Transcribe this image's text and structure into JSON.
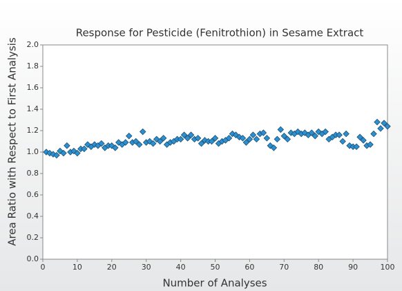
{
  "chart_data": {
    "type": "scatter",
    "title": "Response for Pesticide (Fenitrothion) in Sesame Extract",
    "x_label": "Number of Analyses",
    "y_label": "Area Ratio with Respect to First Analysis",
    "x": [
      1,
      2,
      3,
      4,
      5,
      6,
      7,
      8,
      9,
      10,
      11,
      12,
      13,
      14,
      15,
      16,
      17,
      18,
      19,
      20,
      21,
      22,
      23,
      24,
      25,
      26,
      27,
      28,
      29,
      30,
      31,
      32,
      33,
      34,
      35,
      36,
      37,
      38,
      39,
      40,
      41,
      42,
      43,
      44,
      45,
      46,
      47,
      48,
      49,
      50,
      51,
      52,
      53,
      54,
      55,
      56,
      57,
      58,
      59,
      60,
      61,
      62,
      63,
      64,
      65,
      66,
      67,
      68,
      69,
      70,
      71,
      72,
      73,
      74,
      75,
      76,
      77,
      78,
      79,
      80,
      81,
      82,
      83,
      84,
      85,
      86,
      87,
      88,
      89,
      90,
      91,
      92,
      93,
      94,
      95,
      96,
      97,
      98,
      99,
      100
    ],
    "values": [
      1.0,
      0.99,
      0.98,
      0.97,
      1.01,
      0.99,
      1.06,
      1.0,
      1.01,
      0.99,
      1.03,
      1.03,
      1.07,
      1.05,
      1.07,
      1.06,
      1.08,
      1.04,
      1.06,
      1.06,
      1.04,
      1.09,
      1.07,
      1.09,
      1.15,
      1.09,
      1.1,
      1.07,
      1.19,
      1.09,
      1.1,
      1.08,
      1.12,
      1.1,
      1.13,
      1.07,
      1.09,
      1.1,
      1.12,
      1.12,
      1.16,
      1.13,
      1.16,
      1.12,
      1.13,
      1.08,
      1.11,
      1.1,
      1.1,
      1.13,
      1.08,
      1.1,
      1.11,
      1.13,
      1.17,
      1.16,
      1.14,
      1.13,
      1.09,
      1.12,
      1.16,
      1.12,
      1.17,
      1.18,
      1.13,
      1.06,
      1.04,
      1.12,
      1.21,
      1.15,
      1.12,
      1.18,
      1.17,
      1.19,
      1.17,
      1.18,
      1.16,
      1.18,
      1.15,
      1.19,
      1.17,
      1.19,
      1.12,
      1.14,
      1.16,
      1.16,
      1.1,
      1.17,
      1.06,
      1.05,
      1.05,
      1.14,
      1.11,
      1.06,
      1.07,
      1.17,
      1.28,
      1.22,
      1.27,
      1.24
    ],
    "color": "#2b8fd0",
    "xlim": [
      0,
      100
    ],
    "xticks": [
      0,
      10,
      20,
      30,
      40,
      50,
      60,
      70,
      80,
      90,
      100
    ],
    "ylim": [
      0,
      2
    ],
    "yticks": [
      {
        "value": 0,
        "label": "0.0"
      },
      {
        "value": 0.2,
        "label": "0.2"
      },
      {
        "value": 0.4,
        "label": "0.4"
      },
      {
        "value": 0.6,
        "label": "0.6"
      },
      {
        "value": 0.8,
        "label": "0.8"
      },
      {
        "value": 1,
        "label": "1.0"
      },
      {
        "value": 1.2,
        "label": "1.2"
      },
      {
        "value": 1.4,
        "label": "1.4"
      },
      {
        "value": 1.6,
        "label": "1.6"
      },
      {
        "value": 1.8,
        "label": "1.8"
      },
      {
        "value": 2,
        "label": "2.0"
      }
    ],
    "grid": false
  }
}
